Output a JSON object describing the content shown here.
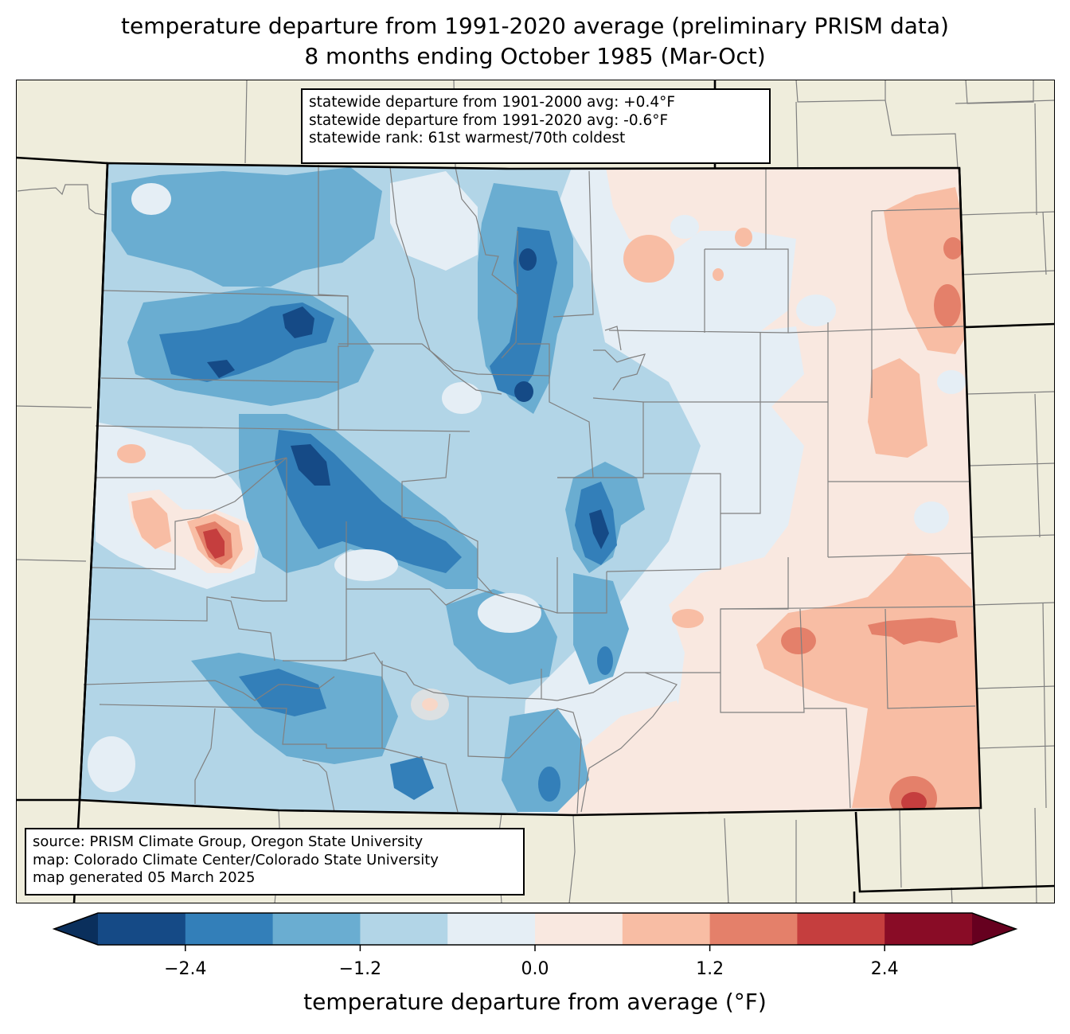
{
  "header": {
    "title_line1": "temperature departure from 1991-2020 average (preliminary PRISM data)",
    "title_line2": "8 months ending October 1985 (Mar-Oct)"
  },
  "stats_box": {
    "line1": "statewide departure from 1901-2000 avg: +0.4°F",
    "line2": "statewide departure from 1991-2020 avg: -0.6°F",
    "line3": "statewide rank: 61st warmest/70th coldest"
  },
  "source_box": {
    "line1": "source: PRISM Climate Group, Oregon State University",
    "line2": "map: Colorado Climate Center/Colorado State University",
    "line3": "map generated 05 March 2025"
  },
  "colorbar": {
    "label": "temperature departure from average (°F)",
    "ticks": [
      "−2.4",
      "−1.2",
      "0.0",
      "1.2",
      "2.4"
    ],
    "tick_values": [
      -2.4,
      -1.2,
      0.0,
      1.2,
      2.4
    ],
    "range": [
      -3.0,
      3.0
    ],
    "bins": [
      {
        "from": -3.0,
        "to": -2.4,
        "color": "#154a86"
      },
      {
        "from": -2.4,
        "to": -1.8,
        "color": "#337fb9"
      },
      {
        "from": -1.8,
        "to": -1.2,
        "color": "#6aadd1"
      },
      {
        "from": -1.2,
        "to": -0.6,
        "color": "#b2d5e7"
      },
      {
        "from": -0.6,
        "to": 0.0,
        "color": "#e5eef5"
      },
      {
        "from": 0.0,
        "to": 0.6,
        "color": "#f9e8e0"
      },
      {
        "from": 0.6,
        "to": 1.2,
        "color": "#f8bda4"
      },
      {
        "from": 1.2,
        "to": 1.8,
        "color": "#e4806a"
      },
      {
        "from": 1.8,
        "to": 2.4,
        "color": "#c53e3e"
      },
      {
        "from": 2.4,
        "to": 3.0,
        "color": "#890c26"
      }
    ],
    "under_color": "#0a2f5c",
    "over_color": "#66001f"
  },
  "colors": {
    "land_background": "#efeddc",
    "county_line": "#808080",
    "state_line": "#000000"
  }
}
